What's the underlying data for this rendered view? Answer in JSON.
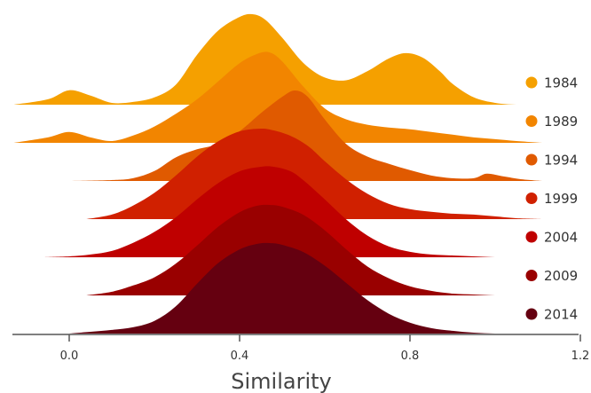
{
  "chart_data": {
    "type": "area",
    "subtype": "ridgeline",
    "title": "",
    "xlabel": "Similarity",
    "ylabel": "",
    "xlim": [
      -0.13,
      1.2
    ],
    "xticks": [
      0.0,
      0.4,
      0.8,
      1.2
    ],
    "xtick_labels": [
      "0.0",
      "0.4",
      "0.8",
      "1.2"
    ],
    "grid": false,
    "legend_position": "right",
    "series": [
      {
        "name": "1984",
        "color": "#f5a000",
        "x": [
          -0.13,
          -0.05,
          0.0,
          0.05,
          0.1,
          0.15,
          0.2,
          0.25,
          0.3,
          0.35,
          0.4,
          0.43,
          0.46,
          0.5,
          0.55,
          0.6,
          0.65,
          0.7,
          0.75,
          0.79,
          0.83,
          0.87,
          0.9,
          0.95,
          1.0,
          1.05,
          1.11
        ],
        "density": [
          0.0,
          0.06,
          0.16,
          0.1,
          0.02,
          0.03,
          0.08,
          0.22,
          0.55,
          0.82,
          0.97,
          1.0,
          0.94,
          0.74,
          0.46,
          0.3,
          0.27,
          0.37,
          0.51,
          0.57,
          0.52,
          0.37,
          0.23,
          0.08,
          0.02,
          0.0,
          0.0
        ]
      },
      {
        "name": "1989",
        "color": "#f28500",
        "x": [
          -0.13,
          -0.05,
          0.0,
          0.05,
          0.1,
          0.15,
          0.2,
          0.25,
          0.3,
          0.35,
          0.4,
          0.44,
          0.47,
          0.5,
          0.55,
          0.6,
          0.65,
          0.7,
          0.75,
          0.8,
          0.85,
          0.9,
          0.95,
          1.0,
          1.05,
          1.11
        ],
        "density": [
          0.0,
          0.06,
          0.12,
          0.06,
          0.02,
          0.08,
          0.18,
          0.32,
          0.48,
          0.68,
          0.88,
          0.98,
          1.0,
          0.9,
          0.62,
          0.38,
          0.26,
          0.2,
          0.17,
          0.15,
          0.12,
          0.09,
          0.06,
          0.04,
          0.02,
          0.0
        ]
      },
      {
        "name": "1994",
        "color": "#e05a00",
        "x": [
          -0.09,
          0.0,
          0.1,
          0.15,
          0.2,
          0.25,
          0.3,
          0.35,
          0.4,
          0.45,
          0.5,
          0.53,
          0.56,
          0.6,
          0.65,
          0.7,
          0.75,
          0.8,
          0.85,
          0.9,
          0.95,
          0.98,
          1.02,
          1.06,
          1.11
        ],
        "density": [
          0.0,
          0.0,
          0.01,
          0.03,
          0.11,
          0.26,
          0.35,
          0.41,
          0.55,
          0.75,
          0.93,
          1.0,
          0.93,
          0.68,
          0.41,
          0.27,
          0.19,
          0.12,
          0.06,
          0.03,
          0.03,
          0.08,
          0.05,
          0.02,
          0.0
        ]
      },
      {
        "name": "1999",
        "color": "#d02000",
        "x": [
          0.04,
          0.1,
          0.15,
          0.2,
          0.25,
          0.3,
          0.35,
          0.4,
          0.45,
          0.48,
          0.52,
          0.56,
          0.6,
          0.65,
          0.7,
          0.75,
          0.8,
          0.85,
          0.9,
          0.95,
          1.0,
          1.05,
          1.11
        ],
        "density": [
          0.0,
          0.05,
          0.15,
          0.29,
          0.48,
          0.69,
          0.86,
          0.97,
          1.0,
          0.98,
          0.92,
          0.81,
          0.64,
          0.44,
          0.28,
          0.17,
          0.11,
          0.08,
          0.06,
          0.05,
          0.03,
          0.01,
          0.0
        ]
      },
      {
        "name": "2004",
        "color": "#bf0000",
        "x": [
          -0.06,
          0.0,
          0.05,
          0.1,
          0.15,
          0.2,
          0.25,
          0.3,
          0.35,
          0.4,
          0.45,
          0.48,
          0.52,
          0.55,
          0.6,
          0.65,
          0.7,
          0.75,
          0.8,
          0.85,
          0.9,
          0.95,
          1.0,
          1.06
        ],
        "density": [
          0.0,
          0.01,
          0.03,
          0.07,
          0.16,
          0.28,
          0.44,
          0.64,
          0.82,
          0.95,
          1.0,
          1.0,
          0.95,
          0.85,
          0.64,
          0.42,
          0.24,
          0.12,
          0.06,
          0.03,
          0.02,
          0.01,
          0.0,
          0.0
        ]
      },
      {
        "name": "2009",
        "color": "#990000",
        "x": [
          0.04,
          0.1,
          0.15,
          0.2,
          0.25,
          0.3,
          0.35,
          0.4,
          0.44,
          0.47,
          0.5,
          0.55,
          0.6,
          0.65,
          0.7,
          0.75,
          0.8,
          0.85,
          0.9,
          0.95,
          1.0,
          1.06
        ],
        "density": [
          0.0,
          0.04,
          0.11,
          0.2,
          0.35,
          0.55,
          0.76,
          0.92,
          0.99,
          1.0,
          0.98,
          0.89,
          0.72,
          0.51,
          0.32,
          0.19,
          0.1,
          0.05,
          0.02,
          0.01,
          0.0,
          0.0
        ]
      },
      {
        "name": "2014",
        "color": "#650010",
        "x": [
          0.0,
          0.05,
          0.1,
          0.15,
          0.2,
          0.25,
          0.3,
          0.35,
          0.4,
          0.44,
          0.47,
          0.5,
          0.55,
          0.6,
          0.65,
          0.7,
          0.75,
          0.8,
          0.85,
          0.9,
          0.95,
          1.0,
          1.05
        ],
        "density": [
          0.0,
          0.02,
          0.04,
          0.07,
          0.14,
          0.3,
          0.55,
          0.78,
          0.93,
          0.99,
          1.0,
          0.98,
          0.9,
          0.75,
          0.56,
          0.37,
          0.22,
          0.12,
          0.06,
          0.03,
          0.01,
          0.0,
          0.0
        ]
      }
    ]
  }
}
